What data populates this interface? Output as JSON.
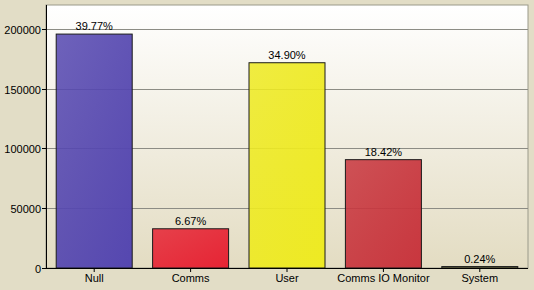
{
  "chart_data": {
    "type": "bar",
    "categories": [
      "Null",
      "Comms",
      "User",
      "Comms IO Monitor",
      "System"
    ],
    "values": [
      195670,
      32816,
      171708,
      90626,
      1181
    ],
    "percent_labels": [
      "39.77%",
      "6.67%",
      "34.90%",
      "18.42%",
      "0.24%"
    ],
    "colors": [
      "#5547b0",
      "#e62434",
      "#eeea22",
      "#c8363e",
      "#8a8a50"
    ],
    "ylim": [
      0,
      220000
    ],
    "yticks": [
      0,
      50000,
      100000,
      150000,
      200000
    ],
    "grid": true
  }
}
